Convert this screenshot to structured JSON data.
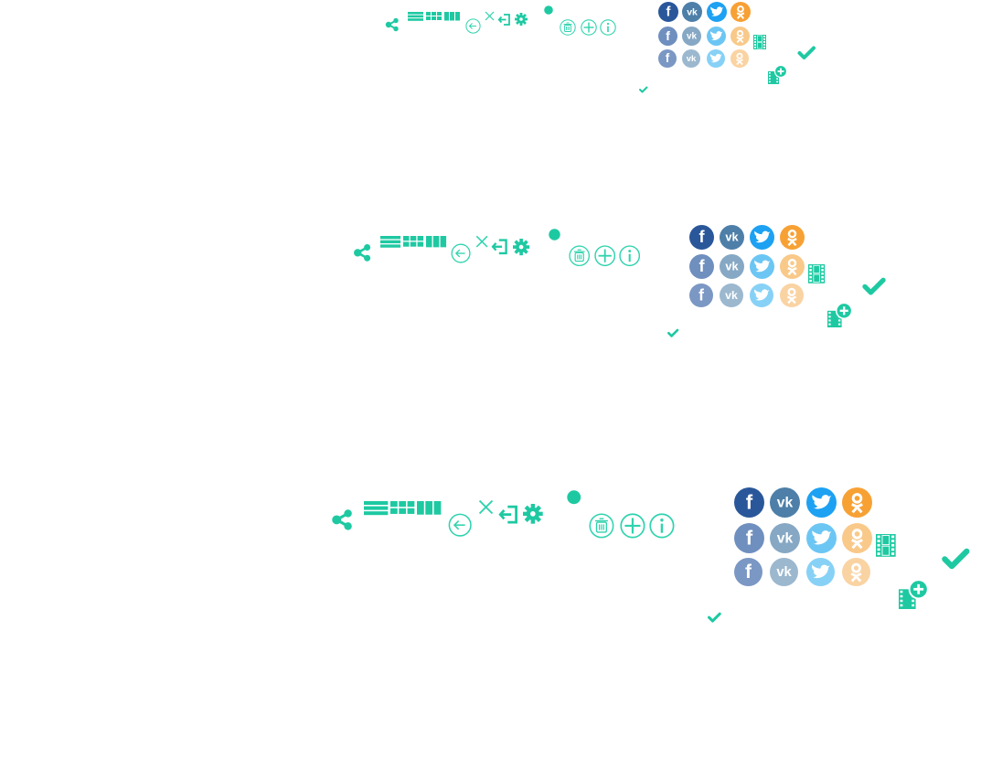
{
  "page": {
    "title": ""
  },
  "colors": {
    "accent": "#1ec9a2",
    "outline": "#2fd3ae",
    "facebook": "#2a579a",
    "vk": "#4d7fa8",
    "twitter": "#1da1f2",
    "ok": "#f7a135",
    "facebook_mid": "#6f8fbf",
    "vk_mid": "#86a8c4",
    "twitter_mid": "#6cc6f4",
    "ok_mid": "#f9c98a",
    "facebook_light": "#7b97c4",
    "vk_light": "#9cb8cf",
    "twitter_light": "#87d1f6",
    "ok_light": "#fad3a3"
  },
  "sprite_sets": [
    {
      "name": "small",
      "scale": 1.0
    },
    {
      "name": "medium",
      "scale": 1.3
    },
    {
      "name": "large",
      "scale": 1.55
    }
  ],
  "icons": [
    "share-icon",
    "list-view-icon",
    "grid-view-icon",
    "columns-view-icon",
    "back-arrow-circle-icon",
    "close-icon",
    "logout-icon",
    "settings-icon",
    "status-dot-icon",
    "trash-circle-icon",
    "plus-circle-icon",
    "info-circle-icon",
    "facebook-icon",
    "vk-icon",
    "twitter-icon",
    "odnoklassniki-icon",
    "film-icon",
    "checkmark-icon",
    "film-add-icon",
    "checkmark-small-icon"
  ]
}
